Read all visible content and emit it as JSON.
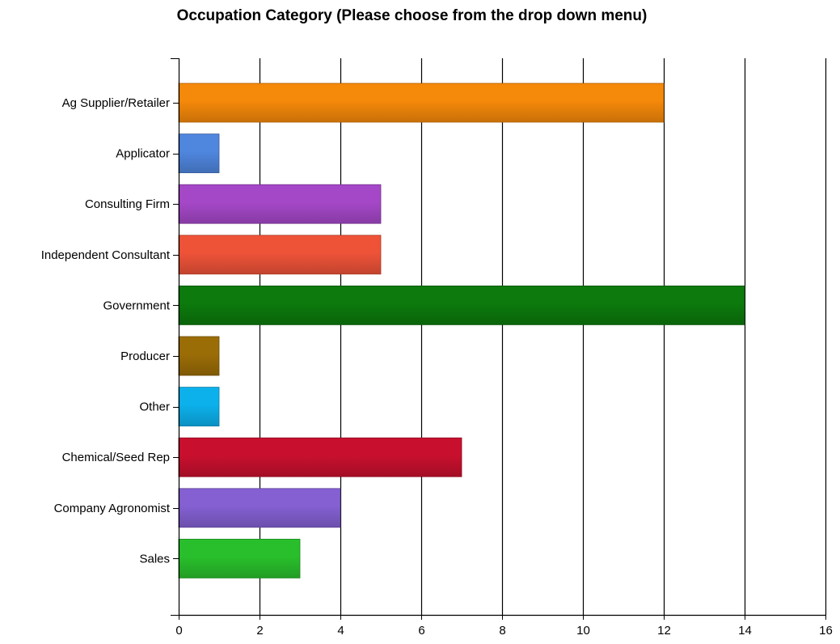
{
  "chart_data": {
    "type": "bar",
    "orientation": "horizontal",
    "title": "Occupation Category (Please choose from the drop down menu)",
    "xlabel": "",
    "ylabel": "",
    "categories": [
      "Ag Supplier/Retailer",
      "Applicator",
      "Consulting Firm",
      "Independent Consultant",
      "Government",
      "Producer",
      "Other",
      "Chemical/Seed Rep",
      "Company Agronomist",
      "Sales"
    ],
    "values": [
      12,
      1,
      5,
      5,
      14,
      1,
      1,
      7,
      4,
      3
    ],
    "xlim": [
      0,
      16
    ],
    "xticks": [
      0,
      2,
      4,
      6,
      8,
      10,
      12,
      14,
      16
    ],
    "grid": "vertical",
    "legend": "none",
    "bar_colors": [
      "#f5890a",
      "#4f86de",
      "#a548c8",
      "#ee5338",
      "#0c7a0c",
      "#9b6d07",
      "#0cb1ec",
      "#c8102e",
      "#8460d2",
      "#29bf2c"
    ]
  }
}
